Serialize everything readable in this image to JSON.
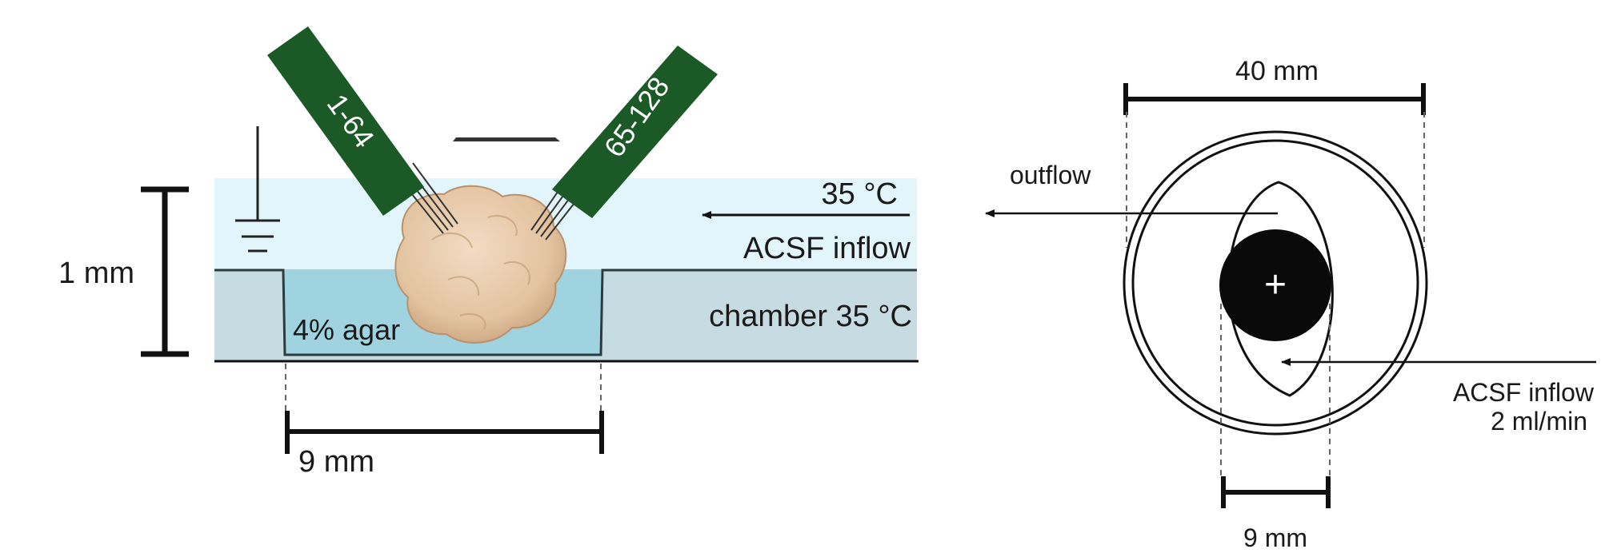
{
  "left_panel": {
    "probe_left_label": "1-64",
    "probe_right_label": "65-128",
    "height_label": "1 mm",
    "width_label": "9 mm",
    "bath_temp_label": "35 °C",
    "inflow_label": "ACSF inflow",
    "chamber_label": "chamber 35 °C",
    "agar_label": "4% agar"
  },
  "right_panel": {
    "diameter_label": "40 mm",
    "outflow_label": "outflow",
    "inflow_label": "ACSF inflow",
    "flow_rate_label": "2 ml/min",
    "width_label": "9 mm",
    "center_mark": "+"
  },
  "colors": {
    "bath": "#e1f5fa",
    "chamber": "#c7dce2",
    "agar": "#9fd3e0",
    "probe": "#1b5a27",
    "tissue": "#e6c7a6"
  }
}
